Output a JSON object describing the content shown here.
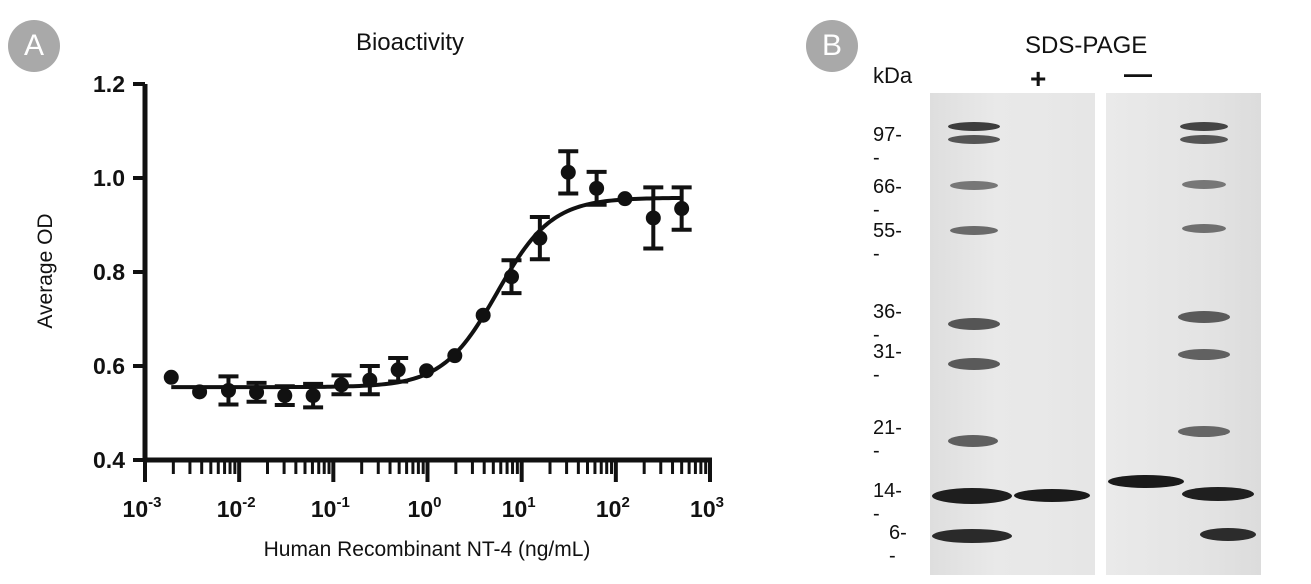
{
  "panel_a": {
    "badge": "A",
    "chart_data": {
      "type": "scatter",
      "title": "Bioactivity",
      "xlabel": "Human Recombinant NT-4 (ng/mL)",
      "ylabel": "Average OD",
      "x_scale": "log",
      "xlim": [
        0.001,
        1000
      ],
      "ylim": [
        0.4,
        1.2
      ],
      "y_ticks": [
        "0.4",
        "0.6",
        "0.8",
        "1.0",
        "1.2"
      ],
      "x_tick_exponents": [
        "-3",
        "-2",
        "-1",
        "0",
        "1",
        "2",
        "3"
      ],
      "grid": false,
      "series": [
        {
          "points": [
            {
              "x": 0.0019,
              "y": 0.576,
              "err": 0
            },
            {
              "x": 0.0038,
              "y": 0.545,
              "err": 0
            },
            {
              "x": 0.0077,
              "y": 0.548,
              "err": 0.03
            },
            {
              "x": 0.0153,
              "y": 0.544,
              "err": 0.02
            },
            {
              "x": 0.0305,
              "y": 0.537,
              "err": 0.02
            },
            {
              "x": 0.061,
              "y": 0.537,
              "err": 0.025
            },
            {
              "x": 0.122,
              "y": 0.56,
              "err": 0.02
            },
            {
              "x": 0.244,
              "y": 0.57,
              "err": 0.03
            },
            {
              "x": 0.488,
              "y": 0.592,
              "err": 0.025
            },
            {
              "x": 0.977,
              "y": 0.59,
              "err": 0
            },
            {
              "x": 1.95,
              "y": 0.622,
              "err": 0
            },
            {
              "x": 3.9,
              "y": 0.708,
              "err": 0
            },
            {
              "x": 7.8,
              "y": 0.79,
              "err": 0.035
            },
            {
              "x": 15.6,
              "y": 0.872,
              "err": 0.045
            },
            {
              "x": 31.25,
              "y": 1.012,
              "err": 0.045
            },
            {
              "x": 62.5,
              "y": 0.978,
              "err": 0.035
            },
            {
              "x": 125,
              "y": 0.956,
              "err": 0
            },
            {
              "x": 250,
              "y": 0.915,
              "err": 0.065
            },
            {
              "x": 500,
              "y": 0.935,
              "err": 0.045
            }
          ]
        }
      ],
      "fit": {
        "bottom": 0.555,
        "top": 0.958,
        "ec50": 5.5,
        "hill": 1.5
      }
    }
  },
  "panel_b": {
    "badge": "B",
    "title": "SDS-PAGE",
    "kda_label": "kDa",
    "lane_plus_label": "+",
    "lane_minus_label": "—",
    "markers": [
      "97--",
      "66--",
      "55--",
      "36--",
      "31--",
      "21--",
      "14--",
      "6--"
    ]
  }
}
